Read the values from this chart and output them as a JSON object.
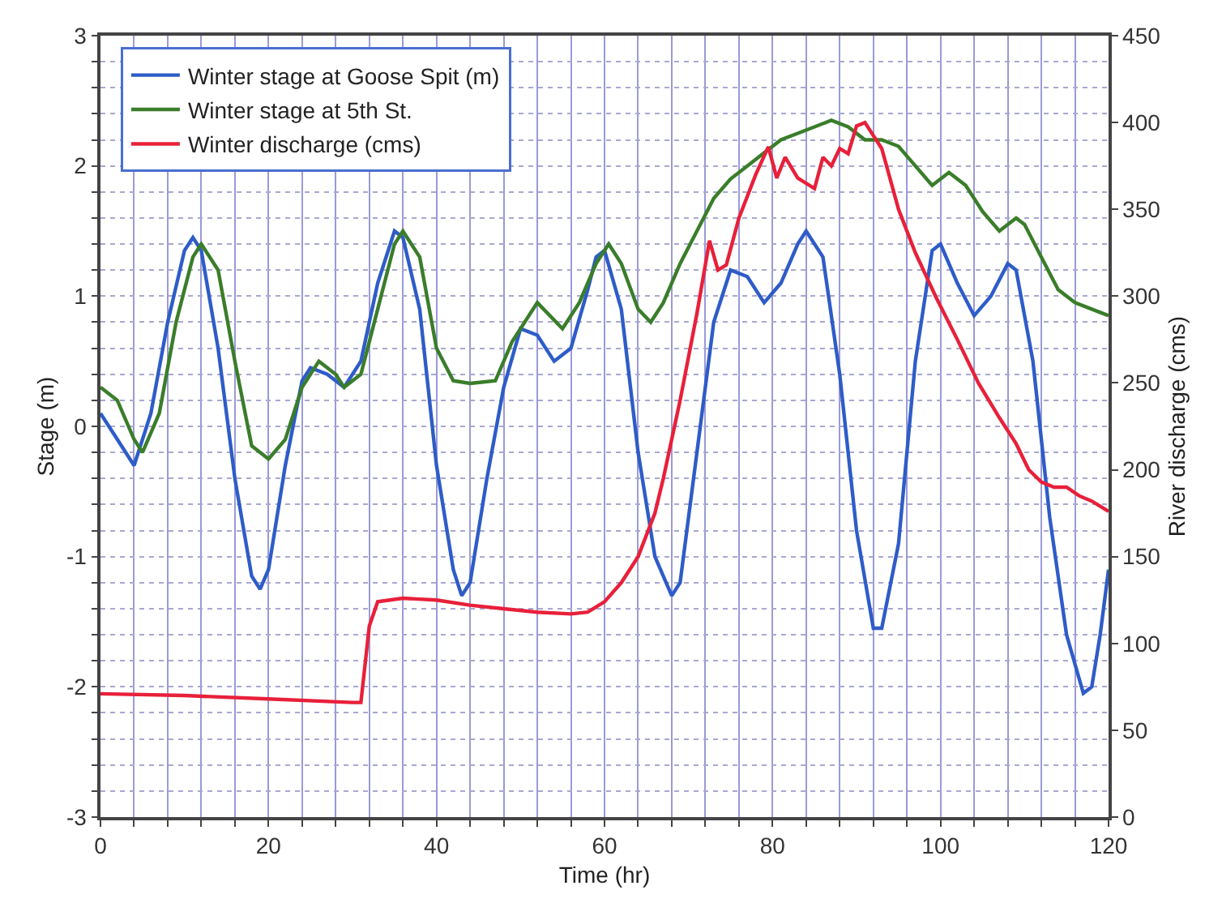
{
  "chart_data": {
    "type": "line",
    "xlabel": "Time (hr)",
    "ylabel": "Stage (m)",
    "y2label": "River discharge (cms)",
    "xlim": [
      0,
      120
    ],
    "xticks": [
      0,
      {
        "value": 4,
        "label": null
      },
      {
        "value": 8,
        "label": null
      },
      {
        "value": 12,
        "label": null
      },
      {
        "value": 16,
        "label": null
      },
      20,
      {
        "value": 24,
        "label": null
      },
      {
        "value": 28,
        "label": null
      },
      {
        "value": 32,
        "label": null
      },
      {
        "value": 36,
        "label": null
      },
      40,
      {
        "value": 44,
        "label": null
      },
      {
        "value": 48,
        "label": null
      },
      {
        "value": 52,
        "label": null
      },
      {
        "value": 56,
        "label": null
      },
      60,
      {
        "value": 64,
        "label": null
      },
      {
        "value": 68,
        "label": null
      },
      {
        "value": 72,
        "label": null
      },
      {
        "value": 76,
        "label": null
      },
      80,
      {
        "value": 84,
        "label": null
      },
      {
        "value": 88,
        "label": null
      },
      {
        "value": 92,
        "label": null
      },
      {
        "value": 96,
        "label": null
      },
      100,
      {
        "value": 104,
        "label": null
      },
      {
        "value": 108,
        "label": null
      },
      {
        "value": 112,
        "label": null
      },
      {
        "value": 116,
        "label": null
      },
      120
    ],
    "ylim": [
      -3,
      3
    ],
    "yticks": [
      -3,
      {
        "value": -2.8,
        "label": null
      },
      {
        "value": -2.6,
        "label": null
      },
      {
        "value": -2.4,
        "label": null
      },
      {
        "value": -2.2,
        "label": null
      },
      -2,
      {
        "value": -1.8,
        "label": null
      },
      {
        "value": -1.6,
        "label": null
      },
      {
        "value": -1.4,
        "label": null
      },
      {
        "value": -1.2,
        "label": null
      },
      -1,
      {
        "value": -0.8,
        "label": null
      },
      {
        "value": -0.6,
        "label": null
      },
      {
        "value": -0.4,
        "label": null
      },
      {
        "value": -0.2,
        "label": null
      },
      0,
      {
        "value": 0.2,
        "label": null
      },
      {
        "value": 0.4,
        "label": null
      },
      {
        "value": 0.6,
        "label": null
      },
      {
        "value": 0.8,
        "label": null
      },
      1,
      {
        "value": 1.2,
        "label": null
      },
      {
        "value": 1.4,
        "label": null
      },
      {
        "value": 1.6,
        "label": null
      },
      {
        "value": 1.8,
        "label": null
      },
      2,
      {
        "value": 2.2,
        "label": null
      },
      {
        "value": 2.4,
        "label": null
      },
      {
        "value": 2.6,
        "label": null
      },
      {
        "value": 2.8,
        "label": null
      },
      3
    ],
    "y2lim": [
      0,
      450
    ],
    "y2ticks": [
      0,
      50,
      100,
      150,
      200,
      250,
      300,
      350,
      400,
      450
    ],
    "grid": true,
    "legend": "top left",
    "marker": "none",
    "line_style": "solid",
    "series": [
      {
        "name": "Winter stage at Goose Spit (m)",
        "color": "#2e5cc8",
        "x": [
          0,
          2,
          4,
          6,
          8,
          10,
          11,
          12,
          14,
          16,
          18,
          19,
          20,
          22,
          24,
          25,
          27,
          29,
          31,
          33,
          35,
          36,
          38,
          40,
          42,
          43,
          44,
          46,
          48,
          50,
          52,
          54,
          56,
          58,
          59,
          60,
          62,
          64,
          66,
          68,
          69,
          71,
          73,
          75,
          77,
          79,
          81,
          83,
          84,
          86,
          88,
          90,
          92,
          93,
          95,
          97,
          99,
          100,
          102,
          104,
          106,
          108,
          109,
          111,
          113,
          115,
          117,
          118,
          119,
          120
        ],
        "values": [
          0.1,
          -0.1,
          -0.3,
          0.1,
          0.8,
          1.35,
          1.45,
          1.35,
          0.6,
          -0.4,
          -1.15,
          -1.25,
          -1.1,
          -0.3,
          0.35,
          0.45,
          0.4,
          0.3,
          0.5,
          1.1,
          1.5,
          1.45,
          0.9,
          -0.3,
          -1.1,
          -1.3,
          -1.2,
          -0.4,
          0.3,
          0.75,
          0.7,
          0.5,
          0.6,
          1.05,
          1.3,
          1.35,
          0.9,
          -0.2,
          -1.0,
          -1.3,
          -1.2,
          -0.2,
          0.8,
          1.2,
          1.15,
          0.95,
          1.1,
          1.4,
          1.5,
          1.3,
          0.4,
          -0.8,
          -1.55,
          -1.55,
          -0.9,
          0.5,
          1.35,
          1.4,
          1.1,
          0.85,
          1.0,
          1.25,
          1.2,
          0.5,
          -0.7,
          -1.6,
          -2.05,
          -2.0,
          -1.6,
          -1.1
        ]
      },
      {
        "name": "Winter stage at 5th St.",
        "color": "#3a7d2a",
        "x": [
          0,
          2,
          4,
          5,
          7,
          9,
          11,
          12,
          14,
          16,
          18,
          20,
          22,
          24,
          26,
          28,
          29,
          31,
          33,
          35,
          36,
          38,
          40,
          42,
          44,
          47,
          49,
          52,
          55,
          57,
          59,
          60.5,
          62,
          64,
          65.5,
          67,
          69,
          71,
          73,
          75,
          77,
          79,
          81,
          83,
          85,
          87,
          89,
          91,
          93,
          95,
          97,
          99,
          101,
          103,
          105,
          107,
          109,
          110,
          112,
          114,
          116,
          118,
          120
        ],
        "values": [
          0.3,
          0.2,
          -0.1,
          -0.2,
          0.1,
          0.8,
          1.3,
          1.4,
          1.2,
          0.5,
          -0.15,
          -0.25,
          -0.1,
          0.3,
          0.5,
          0.4,
          0.3,
          0.4,
          0.9,
          1.4,
          1.5,
          1.3,
          0.6,
          0.35,
          0.33,
          0.35,
          0.65,
          0.95,
          0.75,
          0.95,
          1.25,
          1.4,
          1.25,
          0.9,
          0.8,
          0.95,
          1.25,
          1.5,
          1.75,
          1.9,
          2.0,
          2.1,
          2.2,
          2.25,
          2.3,
          2.35,
          2.3,
          2.2,
          2.2,
          2.15,
          2.0,
          1.85,
          1.95,
          1.85,
          1.65,
          1.5,
          1.6,
          1.55,
          1.3,
          1.05,
          0.95,
          0.9,
          0.85
        ]
      },
      {
        "name": "Winter discharge (cms)",
        "color": "#e8203a",
        "axis": "y2",
        "x": [
          0,
          10,
          20,
          30,
          31,
          32,
          33,
          36,
          40,
          44,
          48,
          52,
          56,
          58,
          60,
          62,
          64,
          66,
          67,
          69,
          71,
          72.5,
          73.5,
          74.5,
          76,
          78,
          79.5,
          80.5,
          81.5,
          83,
          85,
          86,
          87,
          88,
          89,
          90,
          91,
          93,
          95,
          97,
          99.5,
          102,
          104.5,
          107,
          109,
          110.5,
          112,
          113.5,
          115,
          116.5,
          118,
          120
        ],
        "values": [
          71,
          70,
          68,
          66,
          66,
          110,
          124,
          126,
          125,
          122,
          120,
          118,
          117,
          118,
          124,
          135,
          150,
          175,
          195,
          240,
          290,
          332,
          315,
          318,
          345,
          370,
          386,
          368,
          380,
          368,
          362,
          380,
          375,
          385,
          382,
          398,
          400,
          385,
          350,
          325,
          299,
          275,
          250,
          230,
          215,
          200,
          193,
          190,
          190,
          185,
          182,
          176
        ]
      }
    ]
  }
}
